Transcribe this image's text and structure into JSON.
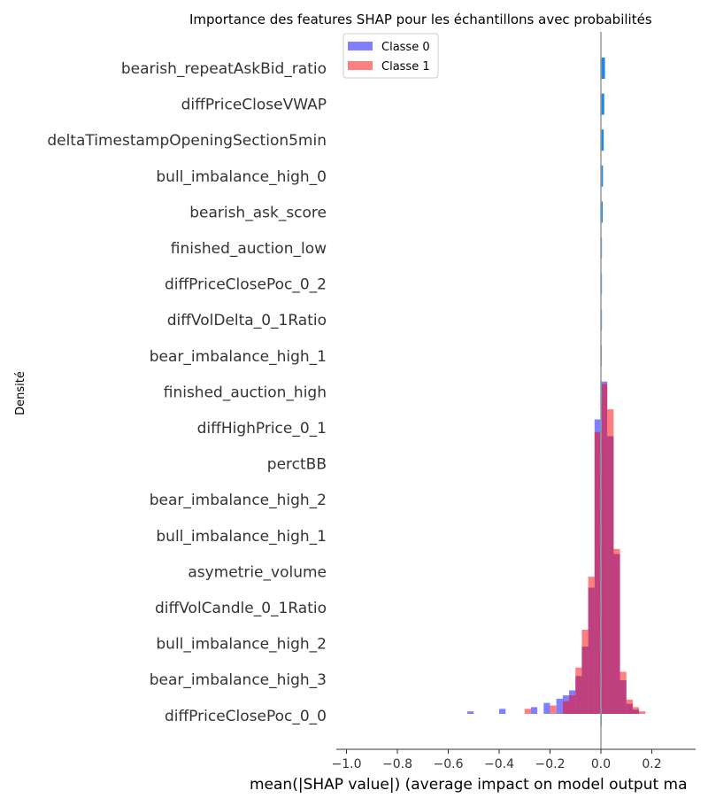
{
  "chart_data": {
    "type": "bar",
    "title": "Importance des features SHAP pour les échantillons avec probabilités",
    "xlabel": "mean(|SHAP value|) (average impact on model output ma",
    "ylabel": "Densité",
    "xlim": [
      -1.05,
      0.37
    ],
    "x_ticks": [
      -1.0,
      -0.8,
      -0.6,
      -0.4,
      -0.2,
      0.0,
      0.2
    ],
    "x_tick_labels": [
      "−1.0",
      "−0.8",
      "−0.6",
      "−0.4",
      "−0.2",
      "0.0",
      "0.2"
    ],
    "grid": false,
    "legend_position": "top-left",
    "features": [
      {
        "name": "bearish_repeatAskBid_ratio",
        "value": 0.016
      },
      {
        "name": "diffPriceCloseVWAP",
        "value": 0.013
      },
      {
        "name": "deltaTimestampOpeningSection5min",
        "value": 0.011
      },
      {
        "name": "bull_imbalance_high_0",
        "value": 0.008
      },
      {
        "name": "bearish_ask_score",
        "value": 0.007
      },
      {
        "name": "finished_auction_low",
        "value": 0.004
      },
      {
        "name": "diffPriceClosePoc_0_2",
        "value": 0.004
      },
      {
        "name": "diffVolDelta_0_1Ratio",
        "value": 0.004
      },
      {
        "name": "bear_imbalance_high_1",
        "value": 0.003
      },
      {
        "name": "finished_auction_high",
        "value": 0.003
      },
      {
        "name": "diffHighPrice_0_1",
        "value": 0.003
      },
      {
        "name": "perctBB",
        "value": 0.003
      },
      {
        "name": "bear_imbalance_high_2",
        "value": 0.003
      },
      {
        "name": "bull_imbalance_high_1",
        "value": 0.002
      },
      {
        "name": "asymetrie_volume",
        "value": 0.002
      },
      {
        "name": "diffVolCandle_0_1Ratio",
        "value": 0.002
      },
      {
        "name": "bull_imbalance_high_2",
        "value": 0.002
      },
      {
        "name": "bear_imbalance_high_3",
        "value": 0.002
      },
      {
        "name": "diffPriceClosePoc_0_0",
        "value": 0.002
      }
    ],
    "histogram": {
      "bin_width": 0.025,
      "series": [
        {
          "name": "Classe 0",
          "color": "#0000ff",
          "bins": [
            {
              "x0": -0.525,
              "density": 0.03
            },
            {
              "x0": -0.4,
              "density": 0.06
            },
            {
              "x0": -0.275,
              "density": 0.08
            },
            {
              "x0": -0.225,
              "density": 0.13
            },
            {
              "x0": -0.175,
              "density": 0.18
            },
            {
              "x0": -0.15,
              "density": 0.22
            },
            {
              "x0": -0.125,
              "density": 0.28
            },
            {
              "x0": -0.1,
              "density": 0.45
            },
            {
              "x0": -0.075,
              "density": 0.8
            },
            {
              "x0": -0.05,
              "density": 1.5
            },
            {
              "x0": -0.025,
              "density": 3.5
            },
            {
              "x0": 0.0,
              "density": 3.95
            },
            {
              "x0": 0.025,
              "density": 3.3
            },
            {
              "x0": 0.05,
              "density": 1.9
            },
            {
              "x0": 0.075,
              "density": 0.4
            },
            {
              "x0": 0.1,
              "density": 0.12
            },
            {
              "x0": 0.125,
              "density": 0.05
            }
          ]
        },
        {
          "name": "Classe 1",
          "color": "#ff0000",
          "bins": [
            {
              "x0": -0.3,
              "density": 0.06
            },
            {
              "x0": -0.2,
              "density": 0.1
            },
            {
              "x0": -0.15,
              "density": 0.15
            },
            {
              "x0": -0.125,
              "density": 0.22
            },
            {
              "x0": -0.1,
              "density": 0.55
            },
            {
              "x0": -0.075,
              "density": 1.0
            },
            {
              "x0": -0.05,
              "density": 1.63
            },
            {
              "x0": -0.025,
              "density": 3.35
            },
            {
              "x0": 0.0,
              "density": 3.92
            },
            {
              "x0": 0.025,
              "density": 3.62
            },
            {
              "x0": 0.05,
              "density": 1.96
            },
            {
              "x0": 0.075,
              "density": 0.5
            },
            {
              "x0": 0.1,
              "density": 0.17
            },
            {
              "x0": 0.125,
              "density": 0.08
            },
            {
              "x0": 0.15,
              "density": 0.03
            }
          ]
        }
      ]
    }
  }
}
